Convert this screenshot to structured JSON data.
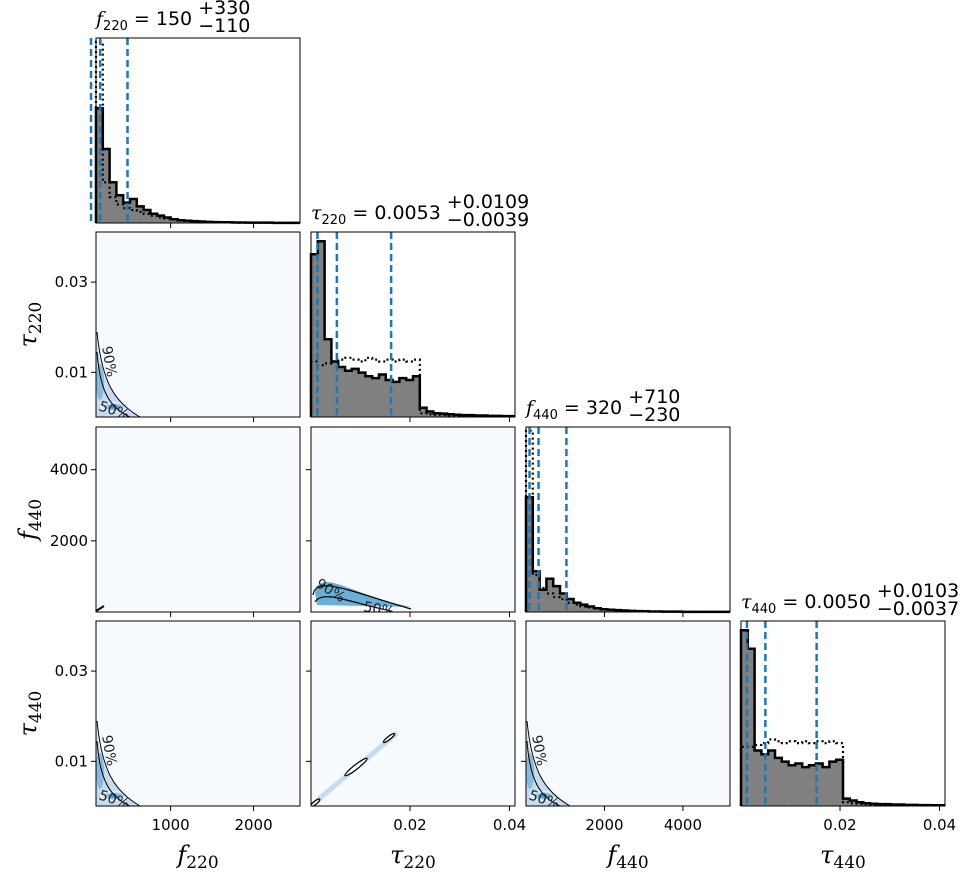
{
  "chart_data": {
    "type": "corner",
    "parameters": [
      {
        "symbol": "f",
        "sub": "220",
        "axis_label": "f220",
        "range": [
          100,
          2560
        ],
        "ticks": [
          1000,
          2000
        ],
        "tick_labels": [
          "1000",
          "2000"
        ],
        "title": {
          "prefix": "f",
          "sub": "220",
          "value": " = 150",
          "plus": "+330",
          "minus": "−110"
        },
        "quantiles": [
          40,
          150,
          480
        ],
        "hist_solid": [
          0.62,
          0.4,
          0.22,
          0.15,
          0.11,
          0.13,
          0.09,
          0.07,
          0.05,
          0.04,
          0.03,
          0.02,
          0.015,
          0.012,
          0.01,
          0.008,
          0.006,
          0.005,
          0.004,
          0.004,
          0.003,
          0.003,
          0.002,
          0.002,
          0.002,
          0.002,
          0.001,
          0.001,
          0.001,
          0.001
        ],
        "hist_dotted": [
          0.98,
          0.22,
          0.14,
          0.1,
          0.08,
          0.07,
          0.06,
          0.05,
          0.04,
          0.03,
          0.025,
          0.02,
          0.015,
          0.012,
          0.01,
          0.008,
          0.006,
          0.005,
          0.004,
          0.003,
          0.003,
          0.002,
          0.002,
          0.002,
          0.001,
          0.001,
          0.001,
          0.001,
          0.001,
          0.001
        ]
      },
      {
        "symbol": "τ",
        "sub": "220",
        "axis_label": "τ220",
        "range": [
          0.0001,
          0.0411
        ],
        "ticks": [
          0.02,
          0.04
        ],
        "tick_labels": [
          "0.02",
          "0.04"
        ],
        "ytick_values": [
          0.01,
          0.03
        ],
        "ytick_labels": [
          "0.01",
          "0.03"
        ],
        "title": {
          "prefix": "τ",
          "sub": "220",
          "value": " = 0.0053",
          "plus": "+0.0109",
          "minus": "−0.0039"
        },
        "quantiles": [
          0.0014,
          0.0053,
          0.0162
        ],
        "hist_solid": [
          0.88,
          0.95,
          0.42,
          0.3,
          0.27,
          0.25,
          0.26,
          0.24,
          0.22,
          0.21,
          0.23,
          0.2,
          0.19,
          0.21,
          0.2,
          0.22,
          0.05,
          0.03,
          0.02,
          0.018,
          0.015,
          0.012,
          0.01,
          0.01,
          0.008,
          0.008,
          0.006,
          0.006,
          0.005,
          0.005
        ],
        "hist_dotted": [
          0.3,
          0.28,
          0.29,
          0.3,
          0.31,
          0.32,
          0.31,
          0.3,
          0.32,
          0.31,
          0.3,
          0.31,
          0.3,
          0.31,
          0.3,
          0.31,
          0.02,
          0.015,
          0.012,
          0.01,
          0.008,
          0.007,
          0.006,
          0.005,
          0.005,
          0.004,
          0.004,
          0.003,
          0.003,
          0.003
        ]
      },
      {
        "symbol": "f",
        "sub": "440",
        "axis_label": "f440",
        "range": [
          0,
          5200
        ],
        "ticks": [
          2000,
          4000
        ],
        "tick_labels": [
          "2000",
          "4000"
        ],
        "ytick_values": [
          2000,
          4000
        ],
        "ytick_labels": [
          "2000",
          "4000"
        ],
        "title": {
          "prefix": "f",
          "sub": "440",
          "value": " = 320",
          "plus": "+710",
          "minus": "−230"
        },
        "quantiles": [
          90,
          320,
          1030
        ],
        "hist_solid": [
          0.62,
          0.22,
          0.12,
          0.18,
          0.14,
          0.1,
          0.07,
          0.05,
          0.04,
          0.03,
          0.02,
          0.015,
          0.012,
          0.01,
          0.008,
          0.006,
          0.005,
          0.004,
          0.003,
          0.003,
          0.002,
          0.002,
          0.002,
          0.001,
          0.001,
          0.001,
          0.001,
          0.001,
          0.001,
          0.001
        ],
        "hist_dotted": [
          0.98,
          0.2,
          0.13,
          0.1,
          0.08,
          0.07,
          0.05,
          0.04,
          0.03,
          0.025,
          0.02,
          0.015,
          0.012,
          0.01,
          0.008,
          0.006,
          0.005,
          0.004,
          0.003,
          0.003,
          0.002,
          0.002,
          0.002,
          0.001,
          0.001,
          0.001,
          0.001,
          0.001,
          0.001,
          0.001
        ]
      },
      {
        "symbol": "τ",
        "sub": "440",
        "axis_label": "τ440",
        "range": [
          0.0001,
          0.0411
        ],
        "ticks": [
          0.02,
          0.04
        ],
        "tick_labels": [
          "0.02",
          "0.04"
        ],
        "ytick_values": [
          0.01,
          0.03
        ],
        "ytick_labels": [
          "0.01",
          "0.03"
        ],
        "title": {
          "prefix": "τ",
          "sub": "440",
          "value": " = 0.0050",
          "plus": "+0.0103",
          "minus": "−0.0037"
        },
        "quantiles": [
          0.0013,
          0.005,
          0.0153
        ],
        "hist_solid": [
          0.95,
          0.85,
          0.3,
          0.28,
          0.3,
          0.26,
          0.24,
          0.22,
          0.23,
          0.21,
          0.22,
          0.23,
          0.21,
          0.24,
          0.25,
          0.04,
          0.03,
          0.02,
          0.015,
          0.012,
          0.01,
          0.01,
          0.008,
          0.008,
          0.006,
          0.006,
          0.005,
          0.005,
          0.004,
          0.004
        ],
        "hist_dotted": [
          0.32,
          0.32,
          0.33,
          0.34,
          0.36,
          0.35,
          0.34,
          0.35,
          0.34,
          0.35,
          0.34,
          0.35,
          0.34,
          0.35,
          0.34,
          0.02,
          0.015,
          0.012,
          0.01,
          0.008,
          0.007,
          0.006,
          0.005,
          0.005,
          0.004,
          0.004,
          0.003,
          0.003,
          0.003,
          0.003
        ]
      }
    ],
    "contour_levels": [
      "50%",
      "90%"
    ],
    "density_colormap": [
      "#f7fbff",
      "#c6dbef",
      "#6baed6",
      "#2171b5"
    ],
    "quantile_line_color": "#1f77b4",
    "hist_fill_color": "#808080"
  }
}
